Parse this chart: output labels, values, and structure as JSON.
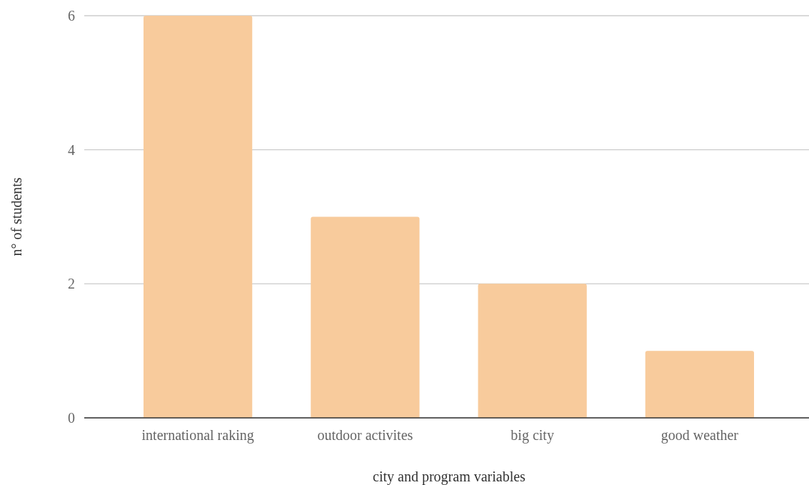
{
  "chart_data": {
    "type": "bar",
    "xlabel": "city and program variables",
    "ylabel": "n° of students",
    "categories": [
      "international raking",
      "outdoor activites",
      "big city",
      "good weather"
    ],
    "values": [
      6,
      3,
      2,
      1
    ],
    "color": "#f8cb9c",
    "ylim": [
      0,
      6
    ],
    "yticks": [
      0,
      2,
      4,
      6
    ],
    "grid": "y"
  }
}
